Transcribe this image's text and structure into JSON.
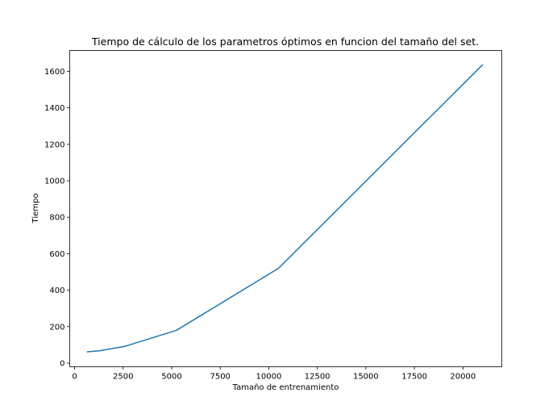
{
  "chart_data": {
    "type": "line",
    "title": "Tiempo de cálculo de los parametros óptimos en funcion del tamaño del set.",
    "xlabel": "Tamaño de entrenamiento",
    "ylabel": "Tiempo",
    "xlim": [
      -250,
      22000
    ],
    "ylim": [
      -20,
      1715
    ],
    "xticks": [
      0,
      2500,
      5000,
      7500,
      10000,
      12500,
      15000,
      17500,
      20000
    ],
    "yticks": [
      0,
      200,
      400,
      600,
      800,
      1000,
      1200,
      1400,
      1600
    ],
    "grid": false,
    "series": [
      {
        "color": "#1f77b4",
        "x": [
          656,
          1312,
          2625,
          5250,
          10500,
          21000
        ],
        "y": [
          62,
          68,
          93,
          180,
          520,
          1635
        ]
      }
    ]
  }
}
